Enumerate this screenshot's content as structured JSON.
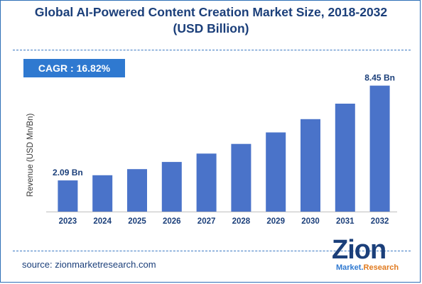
{
  "header": {
    "title_line1": "Global AI-Powered Content Creation Market Size, 2018-2032",
    "title_line2": "(USD Billion)"
  },
  "cagr_label": "CAGR : 16.82%",
  "source_text": "source: zionmarketresearch.com",
  "logo": {
    "main": "Zion",
    "sub_a": "Market.",
    "sub_b": "Research"
  },
  "colors": {
    "bar": "#4a73c9",
    "title": "#1b3f7a",
    "cagr_bg": "#2f79d0"
  },
  "chart_data": {
    "type": "bar",
    "title": "Global AI-Powered Content Creation Market Size, 2018-2032 (USD Billion)",
    "ylabel": "Revenue (USD Mn/Bn)",
    "xlabel": "",
    "categories": [
      "2023",
      "2024",
      "2025",
      "2026",
      "2027",
      "2028",
      "2029",
      "2030",
      "2031",
      "2032"
    ],
    "values": [
      2.09,
      2.44,
      2.85,
      3.33,
      3.89,
      4.54,
      5.31,
      6.2,
      7.24,
      8.45
    ],
    "data_labels": [
      {
        "index": 0,
        "text": "2.09 Bn"
      },
      {
        "index": 9,
        "text": "8.45 Bn"
      }
    ],
    "ylim": [
      0,
      9.0
    ],
    "grid": false,
    "legend": "none"
  }
}
